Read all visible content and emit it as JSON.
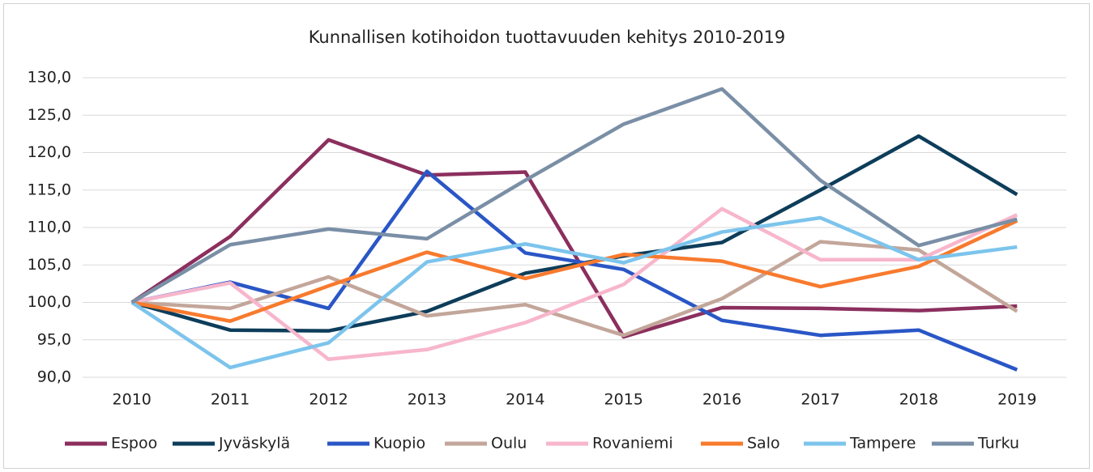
{
  "chart_data": {
    "type": "line",
    "title": "Kunnallisen kotihoidon tuottavuuden kehitys 2010-2019",
    "categories": [
      "2010",
      "2011",
      "2012",
      "2013",
      "2014",
      "2015",
      "2016",
      "2017",
      "2018",
      "2019"
    ],
    "ylim": [
      90,
      130
    ],
    "yticks": [
      {
        "value": 90,
        "label": "90,0"
      },
      {
        "value": 95,
        "label": "95,0"
      },
      {
        "value": 100,
        "label": "100,0"
      },
      {
        "value": 105,
        "label": "105,0"
      },
      {
        "value": 110,
        "label": "110,0"
      },
      {
        "value": 115,
        "label": "115,0"
      },
      {
        "value": 120,
        "label": "120,0"
      },
      {
        "value": 125,
        "label": "125,0"
      },
      {
        "value": 130,
        "label": "130,0"
      }
    ],
    "grid": true,
    "legend": "bottom",
    "series": [
      {
        "name": "Espoo",
        "color": "#8b2f5e",
        "values": [
          100,
          108.8,
          121.7,
          117,
          117.4,
          95.4,
          99.3,
          99.2,
          98.9,
          99.5
        ]
      },
      {
        "name": "Jyväskylä",
        "color": "#0d3d5a",
        "values": [
          100,
          96.3,
          96.2,
          98.8,
          103.9,
          106.2,
          108,
          115,
          122.2,
          114.4
        ]
      },
      {
        "name": "Kuopio",
        "color": "#2a56c6",
        "values": [
          100,
          102.7,
          99.2,
          117.5,
          106.6,
          104.4,
          97.6,
          95.6,
          96.3,
          91
        ]
      },
      {
        "name": "Oulu",
        "color": "#c3a69a",
        "values": [
          100,
          99.2,
          103.4,
          98.2,
          99.7,
          95.6,
          100.5,
          108.1,
          107,
          98.8
        ]
      },
      {
        "name": "Rovaniemi",
        "color": "#f7b6cc",
        "values": [
          100,
          102.6,
          92.4,
          93.7,
          97.3,
          102.4,
          112.5,
          105.7,
          105.7,
          111.7
        ]
      },
      {
        "name": "Salo",
        "color": "#f87a2e",
        "values": [
          100,
          97.5,
          102.2,
          106.7,
          103.2,
          106.4,
          105.5,
          102.1,
          104.8,
          110.9
        ]
      },
      {
        "name": "Tampere",
        "color": "#7cc4ec",
        "values": [
          100,
          91.3,
          94.6,
          105.4,
          107.8,
          105.3,
          109.4,
          111.3,
          105.7,
          107.4
        ]
      },
      {
        "name": "Turku",
        "color": "#7a8fa6",
        "values": [
          100,
          107.7,
          109.8,
          108.5,
          116.3,
          123.8,
          128.5,
          116.3,
          107.6,
          111.1
        ]
      }
    ]
  }
}
